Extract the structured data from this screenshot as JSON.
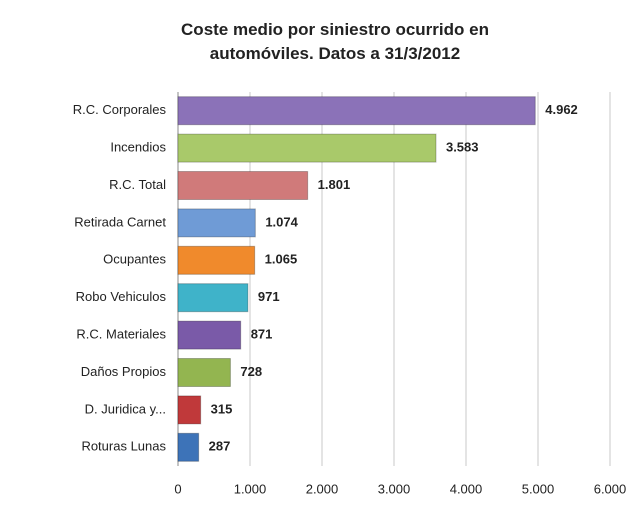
{
  "chart_data": {
    "type": "hbar",
    "title": "Coste medio por siniestro ocurrido en automóviles. Datos a 31/3/2012",
    "categories": [
      "R.C. Corporales",
      "Incendios",
      "R.C. Total",
      "Retirada Carnet",
      "Ocupantes",
      "Robo Vehiculos",
      "R.C. Materiales",
      "Daños Propios",
      "D. Juridica y...",
      "Roturas Lunas"
    ],
    "values": [
      4962,
      3583,
      1801,
      1074,
      1065,
      971,
      871,
      728,
      315,
      287
    ],
    "value_labels": [
      "4.962",
      "3.583",
      "1.801",
      "1.074",
      "1.065",
      "971",
      "871",
      "728",
      "315",
      "287"
    ],
    "colors": [
      "#8b72b8",
      "#a9c96a",
      "#d07a7a",
      "#6f9bd6",
      "#f08a2c",
      "#3fb3c9",
      "#7a5aa8",
      "#93b550",
      "#c0393a",
      "#3d73b8"
    ],
    "xlim": [
      0,
      6000
    ],
    "xticks": [
      0,
      {
        "value": 1000,
        "label": "1.000"
      },
      {
        "value": 2000,
        "label": "2.000"
      },
      {
        "value": 3000,
        "label": "3.000"
      },
      {
        "value": 4000,
        "label": "4.000"
      },
      {
        "value": 5000,
        "label": "5.000"
      },
      {
        "value": 6000,
        "label": "6.000"
      }
    ],
    "grid": true
  }
}
